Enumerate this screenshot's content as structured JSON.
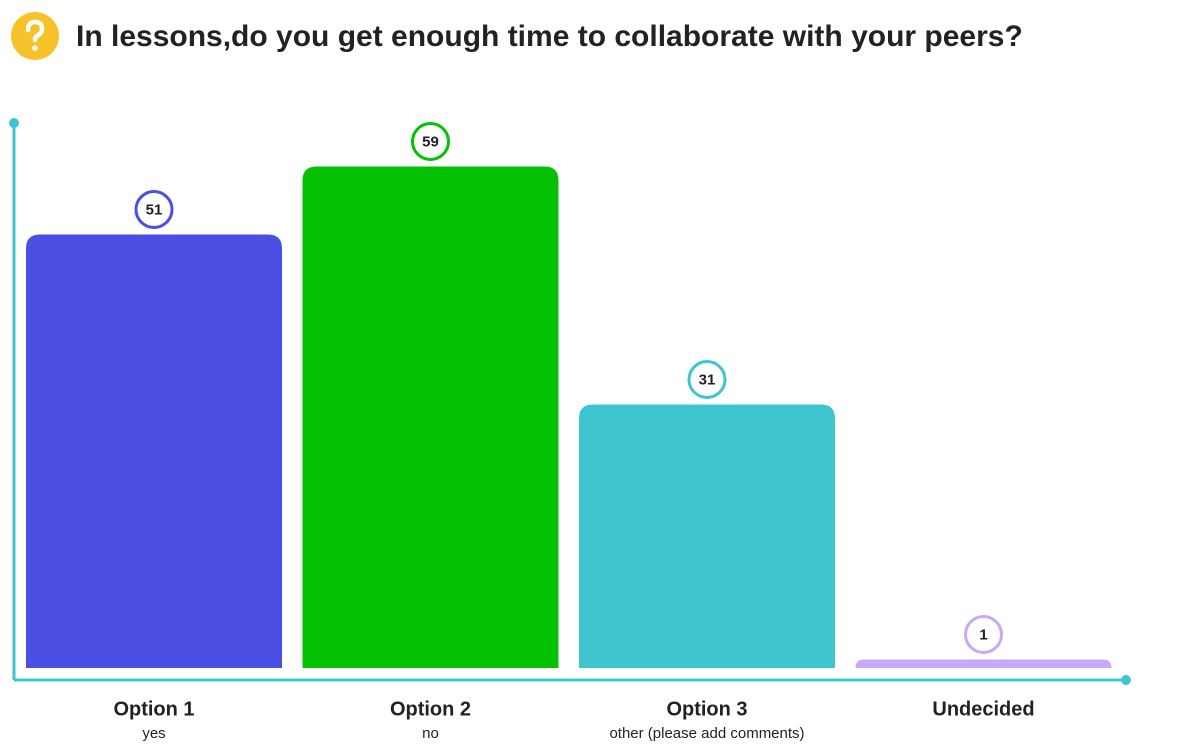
{
  "chart_data": {
    "type": "bar",
    "title": "In lessons,do you get enough time to collaborate with your peers?",
    "categories": [
      "Option 1",
      "Option 2",
      "Option 3",
      "Undecided"
    ],
    "sublabels": [
      "yes",
      "no",
      "other (please add comments)",
      null
    ],
    "values": [
      51,
      59,
      31,
      1
    ],
    "colors": [
      "#4b4fe4",
      "#04c104",
      "#3fc5d0",
      "#c9a8f5"
    ],
    "ylim": [
      0,
      64
    ]
  }
}
